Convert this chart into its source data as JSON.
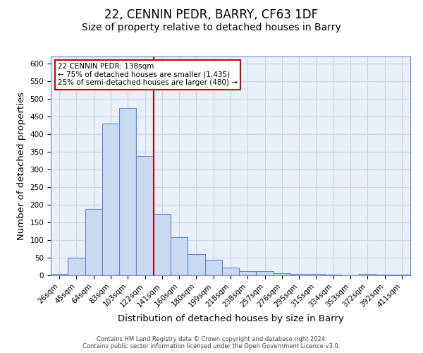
{
  "title": "22, CENNIN PEDR, BARRY, CF63 1DF",
  "subtitle": "Size of property relative to detached houses in Barry",
  "xlabel": "Distribution of detached houses by size in Barry",
  "ylabel": "Number of detached properties",
  "footer_line1": "Contains HM Land Registry data © Crown copyright and database right 2024.",
  "footer_line2": "Contains public sector information licensed under the Open Government Licence v3.0.",
  "categories": [
    "26sqm",
    "45sqm",
    "64sqm",
    "83sqm",
    "103sqm",
    "122sqm",
    "141sqm",
    "160sqm",
    "180sqm",
    "199sqm",
    "218sqm",
    "238sqm",
    "257sqm",
    "276sqm",
    "295sqm",
    "315sqm",
    "334sqm",
    "353sqm",
    "372sqm",
    "392sqm",
    "411sqm"
  ],
  "values": [
    5,
    50,
    188,
    430,
    475,
    338,
    174,
    108,
    60,
    45,
    22,
    12,
    13,
    6,
    5,
    4,
    2,
    1,
    5,
    2,
    3
  ],
  "bar_color": "#c9d9f0",
  "bar_edge_color": "#5b8bd0",
  "vline_x_index": 6,
  "vline_color": "#cc0000",
  "annotation_text_line1": "22 CENNIN PEDR: 138sqm",
  "annotation_text_line2": "← 75% of detached houses are smaller (1,435)",
  "annotation_text_line3": "25% of semi-detached houses are larger (480) →",
  "annotation_box_color": "#ffffff",
  "annotation_box_edge": "#cc0000",
  "ylim": [
    0,
    620
  ],
  "yticks": [
    0,
    50,
    100,
    150,
    200,
    250,
    300,
    350,
    400,
    450,
    500,
    550,
    600
  ],
  "grid_color": "#c8d8e8",
  "bg_color": "#eaf0f8",
  "title_fontsize": 12,
  "subtitle_fontsize": 10,
  "axis_label_fontsize": 9.5,
  "tick_fontsize": 7.5,
  "annotation_fontsize": 7.5
}
